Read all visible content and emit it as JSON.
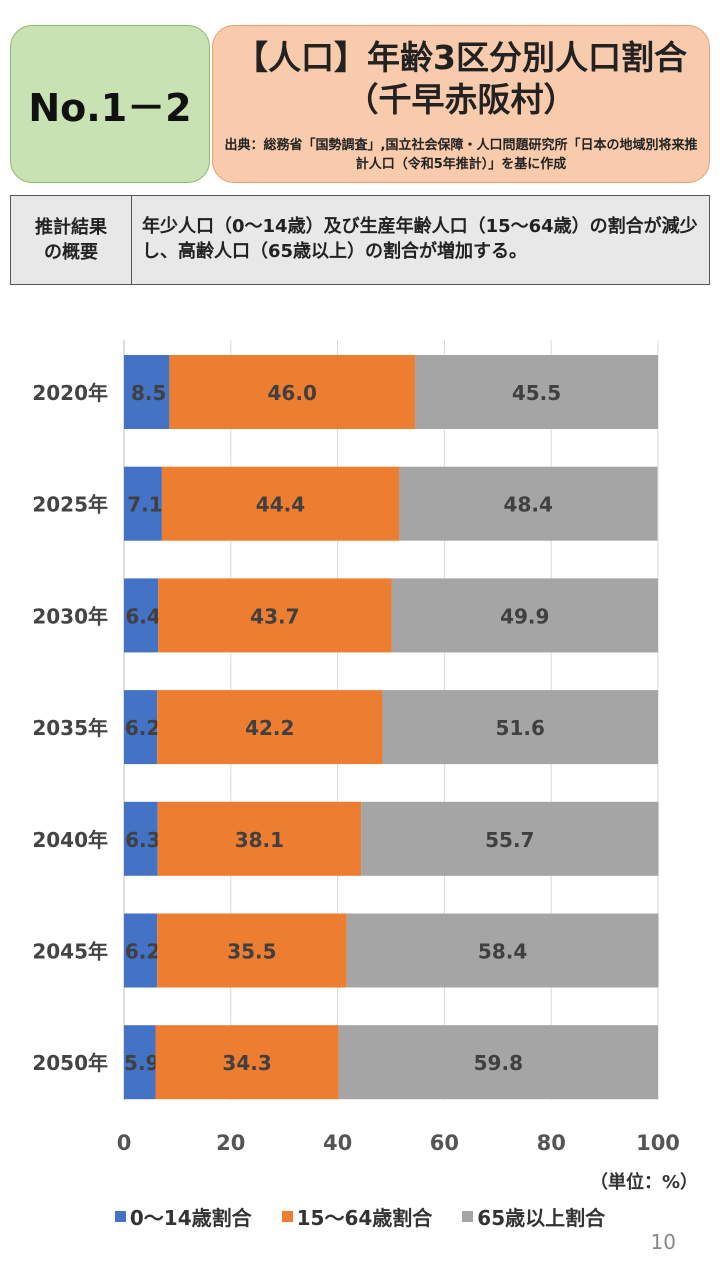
{
  "header": {
    "number": "No.1－2",
    "title_line1": "【人口】年齢3区分別人口割合",
    "title_line2": "（千早赤阪村）",
    "source": "出典：総務省「国勢調査」,国立社会保障・人口問題研究所「日本の地域別将来推計人口（令和5年推計）」を基に作成"
  },
  "summary": {
    "label": "推計結果\nの概要",
    "text": "年少人口（0～14歳）及び生産年齢人口（15～64歳）の割合が減少し、高齢人口（65歳以上）の割合が増加する。"
  },
  "chart_data": {
    "type": "bar",
    "orientation": "horizontal",
    "stacked": true,
    "categories": [
      "2020年",
      "2025年",
      "2030年",
      "2035年",
      "2040年",
      "2045年",
      "2050年"
    ],
    "series": [
      {
        "name": "0～14歳割合",
        "color": "#4472c4",
        "values": [
          8.5,
          7.1,
          6.4,
          6.2,
          6.3,
          6.2,
          5.9
        ]
      },
      {
        "name": "15～64歳割合",
        "color": "#ed7d31",
        "values": [
          46.0,
          44.4,
          43.7,
          42.2,
          38.1,
          35.5,
          34.3
        ]
      },
      {
        "name": "65歳以上割合",
        "color": "#a5a5a5",
        "values": [
          45.5,
          48.4,
          49.9,
          51.6,
          55.7,
          58.4,
          59.8
        ]
      }
    ],
    "xlim": [
      0,
      100
    ],
    "xticks": [
      0,
      20,
      40,
      60,
      80,
      100
    ],
    "unit_label": "（単位：%）",
    "legend_position": "bottom",
    "grid": true
  },
  "page_number": "10"
}
